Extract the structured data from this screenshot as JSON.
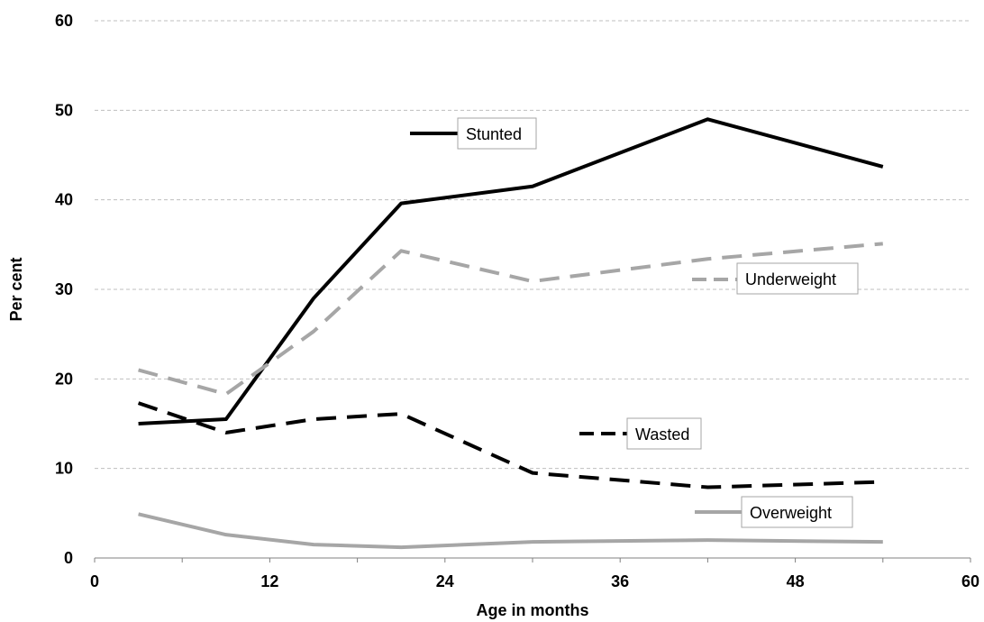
{
  "chart_data": {
    "type": "line",
    "title": "",
    "xlabel": "Age in months",
    "ylabel": "Per cent",
    "xlim": [
      0,
      60
    ],
    "ylim": [
      0,
      60
    ],
    "xticks": [
      0,
      12,
      24,
      36,
      48,
      60
    ],
    "yticks": [
      0,
      10,
      20,
      30,
      40,
      50,
      60
    ],
    "grid": "horizontal dashed",
    "x": [
      3,
      9,
      15,
      21,
      30,
      42,
      54
    ],
    "series": [
      {
        "name": "Stunted",
        "values": [
          15.0,
          15.5,
          29.0,
          39.6,
          41.5,
          49.0,
          43.7
        ],
        "color": "#000000",
        "style": "solid"
      },
      {
        "name": "Underweight",
        "values": [
          21.0,
          18.3,
          25.3,
          34.3,
          30.9,
          33.4,
          35.1
        ],
        "color": "#a6a6a6",
        "style": "dashed"
      },
      {
        "name": "Wasted",
        "values": [
          17.3,
          14.0,
          15.5,
          16.1,
          9.5,
          7.9,
          8.5
        ],
        "color": "#000000",
        "style": "dashed"
      },
      {
        "name": "Overweight",
        "values": [
          4.9,
          2.6,
          1.5,
          1.2,
          1.8,
          2.0,
          1.8
        ],
        "color": "#a6a6a6",
        "style": "solid"
      }
    ],
    "legend_placement": "inline labels near lines"
  }
}
